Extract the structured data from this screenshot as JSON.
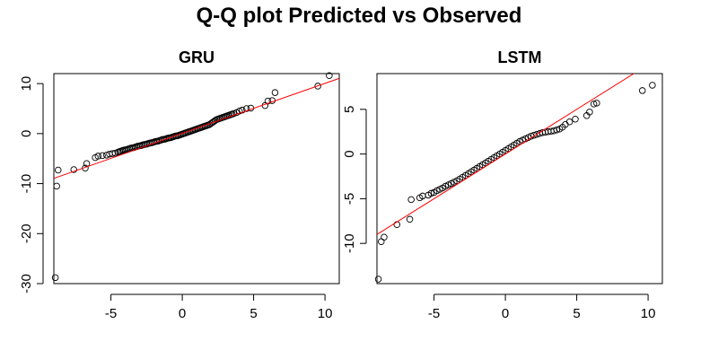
{
  "figure": {
    "title": "Q-Q plot Predicted vs Observed"
  },
  "chart_data": [
    {
      "type": "scatter",
      "title": "GRU",
      "xlabel": "",
      "ylabel": "",
      "xlim": [
        -9,
        11
      ],
      "ylim": [
        -30,
        12
      ],
      "x_ticks": [
        -5,
        0,
        5,
        10
      ],
      "x_tick_labels": [
        "-5",
        "0",
        "5",
        "10"
      ],
      "y_ticks": [
        -30,
        -20,
        -10,
        0,
        10
      ],
      "y_tick_labels": [
        "-30",
        "-20",
        "-10",
        "0",
        "10"
      ],
      "grid": false,
      "point_color": "#000000",
      "reference_line": {
        "color": "#ff0000",
        "intercept": 0.05,
        "slope": 1.0
      },
      "series": [
        {
          "marker": "open-circle",
          "x": [
            -8.9,
            -8.8,
            -8.7,
            -7.6,
            -6.8,
            -6.7,
            -6.1,
            -5.9,
            -5.6,
            -5.3,
            -5.1,
            -4.9,
            -4.7,
            -4.5,
            -4.4,
            -4.3,
            -4.2,
            -4.1,
            -4.0,
            -3.9,
            -3.8,
            -3.7,
            -3.6,
            -3.5,
            -3.4,
            -3.3,
            -3.2,
            -3.1,
            -3.0,
            -2.9,
            -2.8,
            -2.7,
            -2.6,
            -2.5,
            -2.4,
            -2.3,
            -2.2,
            -2.1,
            -2.0,
            -1.9,
            -1.8,
            -1.7,
            -1.6,
            -1.5,
            -1.4,
            -1.3,
            -1.2,
            -1.1,
            -1.0,
            -0.9,
            -0.8,
            -0.7,
            -0.6,
            -0.5,
            -0.4,
            -0.3,
            -0.2,
            -0.1,
            0.0,
            0.1,
            0.2,
            0.3,
            0.4,
            0.5,
            0.6,
            0.7,
            0.8,
            0.9,
            1.0,
            1.1,
            1.2,
            1.3,
            1.4,
            1.5,
            1.6,
            1.7,
            1.8,
            1.9,
            2.0,
            2.1,
            2.2,
            2.3,
            2.4,
            2.5,
            2.6,
            2.7,
            2.8,
            2.9,
            3.0,
            3.1,
            3.2,
            3.3,
            3.4,
            3.5,
            3.6,
            3.8,
            4.0,
            4.2,
            4.5,
            4.8,
            5.8,
            6.0,
            6.3,
            6.5,
            9.5,
            10.3
          ],
          "y": [
            -28.8,
            -10.5,
            -7.3,
            -7.2,
            -6.9,
            -6.0,
            -4.8,
            -4.5,
            -4.4,
            -4.3,
            -4.1,
            -4.0,
            -3.9,
            -3.7,
            -3.6,
            -3.5,
            -3.4,
            -3.3,
            -3.25,
            -3.2,
            -3.1,
            -3.0,
            -2.9,
            -2.85,
            -2.8,
            -2.7,
            -2.6,
            -2.5,
            -2.45,
            -2.4,
            -2.3,
            -2.2,
            -2.15,
            -2.1,
            -2.0,
            -1.9,
            -1.85,
            -1.8,
            -1.7,
            -1.6,
            -1.55,
            -1.5,
            -1.4,
            -1.3,
            -1.2,
            -1.15,
            -1.1,
            -1.0,
            -0.9,
            -0.85,
            -0.8,
            -0.7,
            -0.6,
            -0.5,
            -0.45,
            -0.4,
            -0.3,
            -0.2,
            -0.1,
            0.0,
            0.1,
            0.2,
            0.3,
            0.4,
            0.5,
            0.6,
            0.7,
            0.8,
            0.9,
            1.0,
            1.1,
            1.2,
            1.3,
            1.4,
            1.5,
            1.6,
            1.7,
            1.8,
            2.0,
            2.2,
            2.4,
            2.6,
            2.8,
            2.9,
            3.0,
            3.1,
            3.2,
            3.3,
            3.4,
            3.5,
            3.6,
            3.7,
            3.8,
            3.9,
            4.0,
            4.2,
            4.5,
            4.7,
            5.0,
            5.1,
            5.6,
            6.5,
            6.6,
            8.2,
            9.5,
            11.6
          ]
        }
      ]
    },
    {
      "type": "scatter",
      "title": "LSTM",
      "xlabel": "",
      "ylabel": "",
      "xlim": [
        -9,
        11
      ],
      "ylim": [
        -14.5,
        9
      ],
      "x_ticks": [
        -5,
        0,
        5,
        10
      ],
      "x_tick_labels": [
        "-5",
        "0",
        "5",
        "10"
      ],
      "y_ticks": [
        -10,
        -5,
        0,
        5
      ],
      "y_tick_labels": [
        "-10",
        "-5",
        "0",
        "5"
      ],
      "grid": false,
      "point_color": "#000000",
      "reference_line": {
        "color": "#ff0000",
        "intercept": 0.0,
        "slope": 1.0
      },
      "series": [
        {
          "marker": "open-circle",
          "x": [
            -8.9,
            -8.7,
            -8.5,
            -7.6,
            -6.7,
            -6.6,
            -6.0,
            -5.8,
            -5.4,
            -5.2,
            -5.0,
            -4.8,
            -4.6,
            -4.4,
            -4.2,
            -4.0,
            -3.8,
            -3.6,
            -3.4,
            -3.2,
            -3.0,
            -2.8,
            -2.6,
            -2.4,
            -2.2,
            -2.0,
            -1.8,
            -1.6,
            -1.4,
            -1.2,
            -1.0,
            -0.8,
            -0.6,
            -0.4,
            -0.2,
            0.0,
            0.2,
            0.4,
            0.6,
            0.8,
            1.0,
            1.2,
            1.4,
            1.6,
            1.8,
            2.0,
            2.2,
            2.4,
            2.6,
            2.8,
            3.0,
            3.2,
            3.4,
            3.6,
            3.8,
            4.0,
            4.2,
            4.5,
            4.9,
            5.7,
            5.9,
            6.2,
            6.4,
            9.6,
            10.3
          ],
          "y": [
            -14.0,
            -9.8,
            -9.3,
            -7.9,
            -7.3,
            -5.1,
            -4.9,
            -4.7,
            -4.6,
            -4.4,
            -4.3,
            -4.1,
            -3.95,
            -3.8,
            -3.6,
            -3.45,
            -3.3,
            -3.15,
            -3.0,
            -2.8,
            -2.6,
            -2.4,
            -2.2,
            -2.0,
            -1.8,
            -1.6,
            -1.4,
            -1.2,
            -1.0,
            -0.8,
            -0.6,
            -0.4,
            -0.2,
            0.0,
            0.2,
            0.4,
            0.6,
            0.8,
            1.0,
            1.2,
            1.4,
            1.55,
            1.7,
            1.85,
            2.0,
            2.1,
            2.2,
            2.3,
            2.4,
            2.45,
            2.5,
            2.55,
            2.6,
            2.7,
            2.8,
            3.0,
            3.3,
            3.6,
            3.9,
            4.3,
            4.7,
            5.6,
            5.7,
            7.1,
            7.7
          ]
        }
      ]
    }
  ]
}
